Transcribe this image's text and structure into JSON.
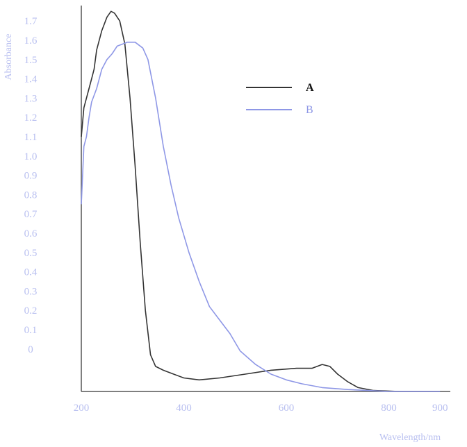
{
  "chart_data": {
    "type": "line",
    "xlabel": "Wavelength/nm",
    "ylabel": "Absorbance",
    "x_ticks": [
      {
        "label": "200",
        "value": 200
      },
      {
        "label": "400",
        "value": 400
      },
      {
        "label": "600",
        "value": 600
      },
      {
        "label": "800",
        "value": 800
      },
      {
        "label": "900",
        "value": 900
      }
    ],
    "y_ticks": [
      {
        "label": "1.7",
        "value": 1.7
      },
      {
        "label": "1.6",
        "value": 1.6
      },
      {
        "label": "1.5",
        "value": 1.5
      },
      {
        "label": "1.4",
        "value": 1.4
      },
      {
        "label": "1.3",
        "value": 1.3
      },
      {
        "label": "1.2",
        "value": 1.2
      },
      {
        "label": "1.1",
        "value": 1.1
      },
      {
        "label": "1.0",
        "value": 1.0
      },
      {
        "label": "0.9",
        "value": 0.9
      },
      {
        "label": "0.8",
        "value": 0.8
      },
      {
        "label": "0.7",
        "value": 0.7
      },
      {
        "label": "0.6",
        "value": 0.6
      },
      {
        "label": "0.5",
        "value": 0.5
      },
      {
        "label": "0.4",
        "value": 0.4
      },
      {
        "label": "0.3",
        "value": 0.3
      },
      {
        "label": "0.2",
        "value": 0.2
      },
      {
        "label": "0.1",
        "value": 0.1
      },
      {
        "label": "0",
        "value": 0.0
      }
    ],
    "xlim": [
      200,
      920
    ],
    "ylim": [
      -0.22,
      1.78
    ],
    "grid": false,
    "legend_position": "top-right",
    "series": [
      {
        "name": "A",
        "color": "#333333",
        "points": [
          [
            200,
            1.1
          ],
          [
            205,
            1.25
          ],
          [
            210,
            1.3
          ],
          [
            215,
            1.35
          ],
          [
            220,
            1.4
          ],
          [
            225,
            1.45
          ],
          [
            230,
            1.55
          ],
          [
            240,
            1.65
          ],
          [
            250,
            1.72
          ],
          [
            258,
            1.75
          ],
          [
            265,
            1.74
          ],
          [
            275,
            1.7
          ],
          [
            285,
            1.58
          ],
          [
            295,
            1.3
          ],
          [
            305,
            0.95
          ],
          [
            315,
            0.55
          ],
          [
            325,
            0.2
          ],
          [
            335,
            -0.03
          ],
          [
            345,
            -0.09
          ],
          [
            360,
            -0.11
          ],
          [
            380,
            -0.13
          ],
          [
            400,
            -0.15
          ],
          [
            430,
            -0.16
          ],
          [
            470,
            -0.15
          ],
          [
            520,
            -0.13
          ],
          [
            570,
            -0.11
          ],
          [
            620,
            -0.1
          ],
          [
            650,
            -0.1
          ],
          [
            670,
            -0.08
          ],
          [
            685,
            -0.09
          ],
          [
            700,
            -0.13
          ],
          [
            720,
            -0.17
          ],
          [
            740,
            -0.2
          ],
          [
            770,
            -0.215
          ],
          [
            820,
            -0.22
          ],
          [
            900,
            -0.22
          ]
        ]
      },
      {
        "name": "B",
        "color": "#8e97e6",
        "points": [
          [
            200,
            0.75
          ],
          [
            205,
            1.05
          ],
          [
            210,
            1.1
          ],
          [
            215,
            1.2
          ],
          [
            220,
            1.28
          ],
          [
            230,
            1.35
          ],
          [
            240,
            1.45
          ],
          [
            250,
            1.5
          ],
          [
            260,
            1.53
          ],
          [
            270,
            1.57
          ],
          [
            280,
            1.58
          ],
          [
            290,
            1.59
          ],
          [
            305,
            1.59
          ],
          [
            320,
            1.56
          ],
          [
            330,
            1.5
          ],
          [
            345,
            1.3
          ],
          [
            360,
            1.05
          ],
          [
            375,
            0.85
          ],
          [
            390,
            0.68
          ],
          [
            410,
            0.5
          ],
          [
            430,
            0.35
          ],
          [
            450,
            0.22
          ],
          [
            470,
            0.15
          ],
          [
            490,
            0.08
          ],
          [
            510,
            -0.01
          ],
          [
            540,
            -0.08
          ],
          [
            570,
            -0.13
          ],
          [
            600,
            -0.16
          ],
          [
            630,
            -0.18
          ],
          [
            670,
            -0.2
          ],
          [
            720,
            -0.21
          ],
          [
            800,
            -0.22
          ],
          [
            900,
            -0.22
          ]
        ]
      }
    ]
  }
}
